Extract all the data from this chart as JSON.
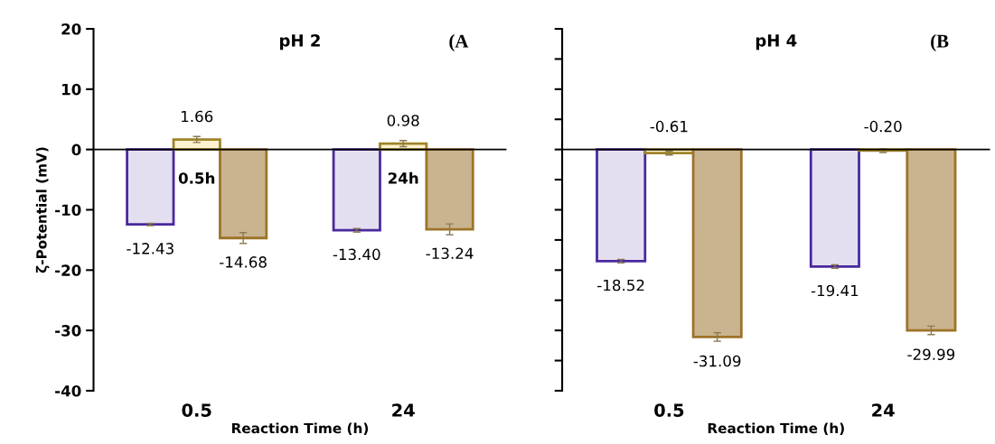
{
  "chart_data": [
    {
      "type": "bar",
      "title": "pH 2",
      "xlabel": "Reaction Time (h)",
      "ylabel": "ζ-Potential (mV)",
      "categories": [
        "0.5",
        "24"
      ],
      "series": [
        {
          "color": "#e4dff0",
          "values": [
            -12.43,
            -13.4
          ],
          "errors": [
            0.2,
            0.3
          ],
          "value_labels": [
            "-12.43",
            "-13.40"
          ]
        },
        {
          "color": "#fdf3d0",
          "values": [
            1.66,
            0.98
          ],
          "errors": [
            0.5,
            0.5
          ],
          "value_labels": [
            "1.66",
            "0.98"
          ]
        },
        {
          "color": "#c9b48f",
          "values": [
            -14.68,
            -13.24
          ],
          "errors": [
            0.9,
            0.9
          ],
          "value_labels": [
            "-14.68",
            "-13.24"
          ]
        }
      ],
      "ylim": [
        -40,
        20
      ],
      "yticks": [
        -40,
        -30,
        -20,
        -10,
        0,
        10,
        20
      ],
      "annotations": [
        "(A",
        "0.5h",
        "24h"
      ]
    },
    {
      "type": "bar",
      "title": "pH 4",
      "xlabel": "Reaction Time (h)",
      "categories": [
        "0.5",
        "24"
      ],
      "series": [
        {
          "color": "#e4dff0",
          "values": [
            -18.52,
            -19.41
          ],
          "errors": [
            0.3,
            0.3
          ],
          "value_labels": [
            "-18.52",
            "-19.41"
          ]
        },
        {
          "color": "#fdf3d0",
          "values": [
            -0.61,
            -0.2
          ],
          "errors": [
            0.3,
            0.3
          ],
          "value_labels": [
            "-0.61",
            "-0.20"
          ]
        },
        {
          "color": "#c9b48f",
          "values": [
            -31.09,
            -29.99
          ],
          "errors": [
            0.7,
            0.7
          ],
          "value_labels": [
            "-31.09",
            "-29.99"
          ]
        }
      ],
      "ylim": [
        -40,
        20
      ],
      "yticks": [
        {
          "value": -40,
          "label": null
        },
        {
          "value": -35,
          "label": null
        },
        {
          "value": -30,
          "label": null
        },
        {
          "value": -25,
          "label": null
        },
        {
          "value": -20,
          "label": null
        },
        {
          "value": -15,
          "label": null
        },
        {
          "value": -10,
          "label": null
        },
        {
          "value": -5,
          "label": null
        },
        {
          "value": 0,
          "label": null
        },
        {
          "value": 5,
          "label": null
        },
        {
          "value": 10,
          "label": null
        },
        {
          "value": 15,
          "label": null
        },
        {
          "value": 20,
          "label": null
        }
      ],
      "tick_labels": "x",
      "annotations": [
        "(B"
      ]
    }
  ]
}
